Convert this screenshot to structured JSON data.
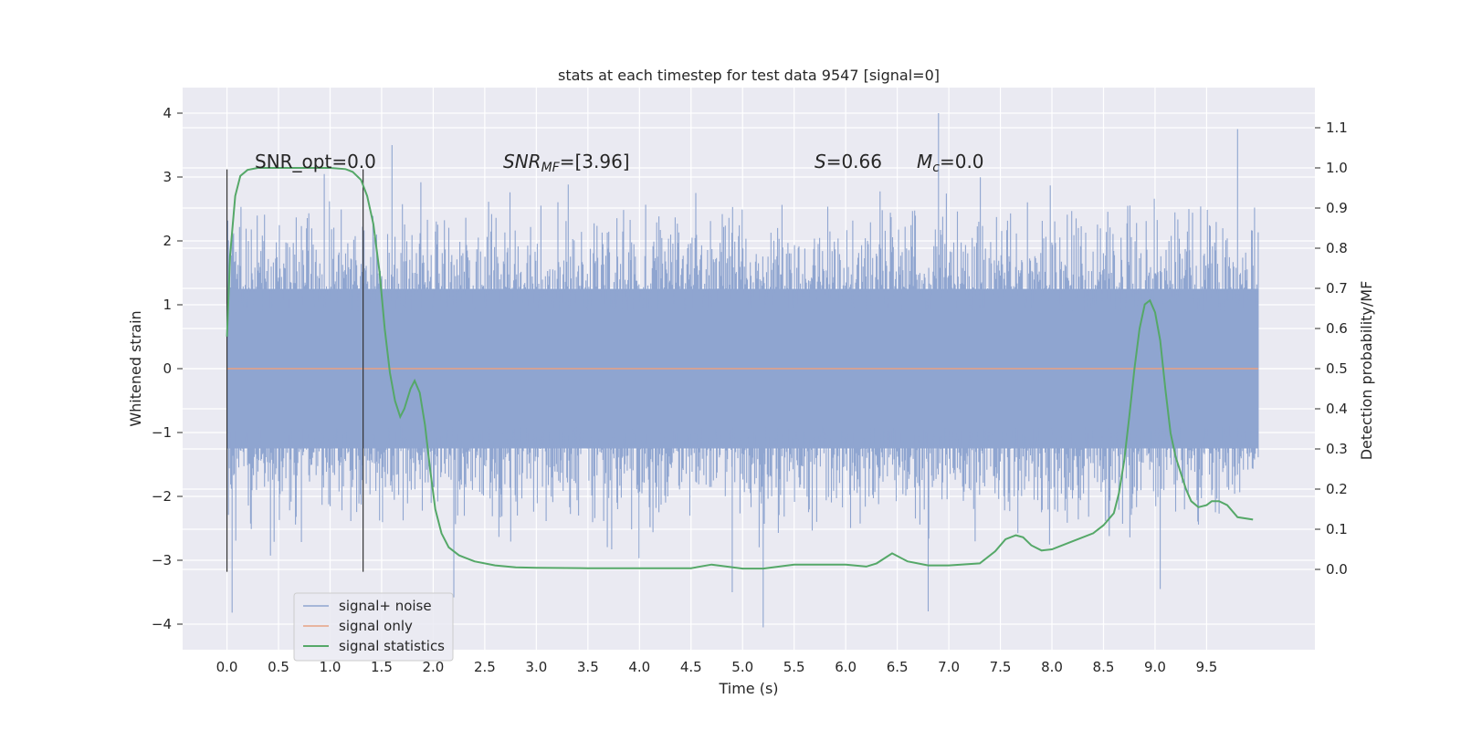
{
  "chart_data": {
    "type": "line",
    "title": "stats at each timestep for test data 9547 [signal=0]",
    "xlabel": "Time (s)",
    "ylabel_left": "Whitened strain",
    "ylabel_right": "Detection probability/MF",
    "xlim": [
      -0.43,
      10.55
    ],
    "ylim_left": [
      -4.4,
      4.4
    ],
    "ylim_right": [
      -0.2,
      1.2
    ],
    "x_ticks": [
      "0.0",
      "0.5",
      "1.0",
      "1.5",
      "2.0",
      "2.5",
      "3.0",
      "3.5",
      "4.0",
      "4.5",
      "5.0",
      "5.5",
      "6.0",
      "6.5",
      "7.0",
      "7.5",
      "8.0",
      "8.5",
      "9.0",
      "9.5"
    ],
    "y_ticks_left": [
      "4",
      "3",
      "2",
      "1",
      "0",
      "−1",
      "−2",
      "−3",
      "−4"
    ],
    "y_ticks_right": [
      "1.1",
      "1.0",
      "0.9",
      "0.8",
      "0.7",
      "0.6",
      "0.5",
      "0.4",
      "0.3",
      "0.2",
      "0.1",
      "0.0"
    ],
    "grid": true,
    "legend_position": "lower-left",
    "annotations": {
      "snr_opt": "SNR_opt=0.0",
      "snr_mf_var": "SNR",
      "snr_mf_sub": "MF",
      "snr_mf_rest": "=[3.96]",
      "s_var": "S",
      "s_rest": "=0.66",
      "mc_var": "M",
      "mc_sub": "c",
      "mc_rest": "=0.0"
    },
    "window_markers_x": [
      0.0,
      1.32
    ],
    "series": [
      {
        "name": "signal+ noise",
        "color": "#8fa5d0",
        "x_range": [
          0.0,
          10.0
        ],
        "envelope_peaks": [
          [
            1.6,
            3.5
          ],
          [
            2.2,
            -3.58
          ],
          [
            4.9,
            -3.5
          ],
          [
            5.2,
            -4.05
          ],
          [
            6.9,
            4.0
          ],
          [
            6.8,
            -3.8
          ],
          [
            9.05,
            -3.45
          ],
          [
            9.8,
            3.75
          ],
          [
            0.05,
            -3.82
          ]
        ]
      },
      {
        "name": "signal only",
        "color": "#e8a283",
        "x": [
          0.0,
          10.0
        ],
        "y": [
          0.0,
          0.0
        ]
      },
      {
        "name": "signal statistics",
        "color": "#55a868",
        "axis": "right",
        "x": [
          0.0,
          0.03,
          0.08,
          0.13,
          0.2,
          0.3,
          0.5,
          0.8,
          1.0,
          1.15,
          1.22,
          1.3,
          1.36,
          1.42,
          1.48,
          1.53,
          1.58,
          1.63,
          1.68,
          1.72,
          1.78,
          1.82,
          1.87,
          1.92,
          1.97,
          2.02,
          2.08,
          2.15,
          2.25,
          2.4,
          2.6,
          2.8,
          3.0,
          3.5,
          4.0,
          4.5,
          4.7,
          5.0,
          5.2,
          5.5,
          5.8,
          6.0,
          6.2,
          6.3,
          6.45,
          6.6,
          6.8,
          7.0,
          7.3,
          7.45,
          7.55,
          7.65,
          7.72,
          7.8,
          7.9,
          8.0,
          8.2,
          8.4,
          8.5,
          8.6,
          8.65,
          8.7,
          8.75,
          8.8,
          8.85,
          8.9,
          8.95,
          9.0,
          9.05,
          9.1,
          9.15,
          9.2,
          9.3,
          9.35,
          9.42,
          9.5,
          9.55,
          9.62,
          9.7,
          9.8,
          9.95
        ],
        "y": [
          0.58,
          0.78,
          0.93,
          0.98,
          0.995,
          1.0,
          1.0,
          1.0,
          1.0,
          0.997,
          0.99,
          0.97,
          0.93,
          0.86,
          0.74,
          0.6,
          0.49,
          0.42,
          0.38,
          0.4,
          0.45,
          0.47,
          0.44,
          0.36,
          0.25,
          0.15,
          0.09,
          0.055,
          0.035,
          0.02,
          0.01,
          0.005,
          0.004,
          0.003,
          0.003,
          0.003,
          0.012,
          0.002,
          0.002,
          0.012,
          0.012,
          0.012,
          0.007,
          0.015,
          0.04,
          0.02,
          0.01,
          0.01,
          0.015,
          0.045,
          0.075,
          0.085,
          0.08,
          0.06,
          0.047,
          0.05,
          0.07,
          0.09,
          0.11,
          0.14,
          0.19,
          0.27,
          0.38,
          0.5,
          0.6,
          0.66,
          0.67,
          0.64,
          0.57,
          0.45,
          0.34,
          0.28,
          0.2,
          0.17,
          0.155,
          0.16,
          0.17,
          0.17,
          0.16,
          0.13,
          0.124
        ]
      }
    ]
  }
}
